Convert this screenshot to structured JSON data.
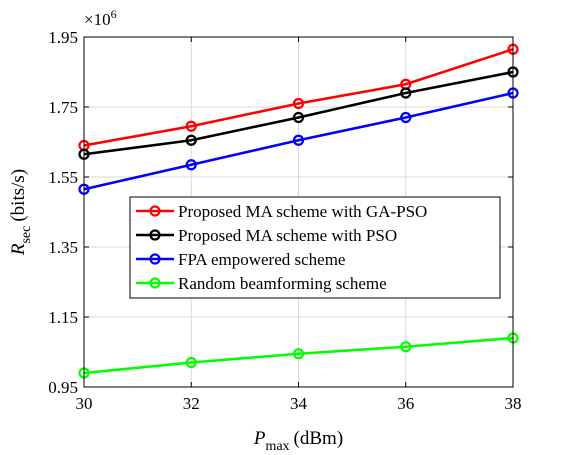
{
  "chart_data": {
    "type": "line",
    "x": [
      30,
      32,
      34,
      36,
      38
    ],
    "series": [
      {
        "name": "Proposed MA scheme with GA-PSO",
        "color": "#ff0000",
        "values": [
          1.64,
          1.695,
          1.76,
          1.815,
          1.915
        ]
      },
      {
        "name": "Proposed MA scheme with PSO",
        "color": "#000000",
        "values": [
          1.615,
          1.655,
          1.72,
          1.79,
          1.85
        ]
      },
      {
        "name": "FPA empowered scheme",
        "color": "#0000ff",
        "values": [
          1.515,
          1.585,
          1.655,
          1.72,
          1.79
        ]
      },
      {
        "name": "Random beamforming scheme",
        "color": "#00ff00",
        "values": [
          0.99,
          1.02,
          1.045,
          1.065,
          1.09
        ]
      }
    ],
    "xlim": [
      30,
      38
    ],
    "ylim": [
      0.95,
      1.95
    ],
    "xticks": [
      "30",
      "32",
      "34",
      "36",
      "38"
    ],
    "yticks": [
      "0.95",
      "1.15",
      "1.35",
      "1.55",
      "1.75",
      "1.95"
    ],
    "y_multiplier": "×10",
    "y_multiplier_exp": "6",
    "xlabel": {
      "main": "P",
      "sub": "max",
      "unit": "(dBm)"
    },
    "ylabel": {
      "main": "R",
      "sub": "sec",
      "unit": "(bits/s)"
    },
    "grid": true,
    "legend_position": "center"
  }
}
